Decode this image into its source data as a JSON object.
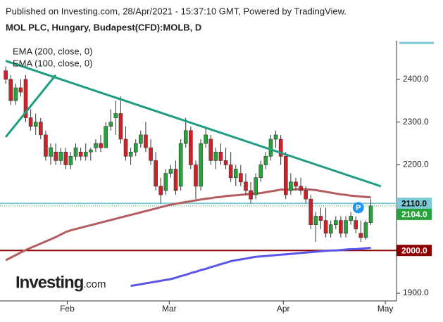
{
  "header": {
    "line1": "Published on Investing.com, 28/Apr/2021 - 15:37:10 GMT, Powered by TradingView.",
    "line2": "MOL PLC, Hungary, Budapest(CFD):MOLB, D"
  },
  "logo": {
    "brand": "Investing",
    "suffix": ".com"
  },
  "chart_data": {
    "type": "candlestick",
    "x": [
      0,
      1,
      2,
      3,
      4,
      5,
      6,
      7,
      8,
      9,
      10,
      11,
      12,
      13,
      14,
      15,
      16,
      17,
      18,
      19,
      20,
      21,
      22,
      23,
      24,
      25,
      26,
      27,
      28,
      29,
      30,
      31,
      32,
      33,
      34,
      35,
      36,
      37,
      38,
      39,
      40,
      41,
      42,
      43,
      44,
      45,
      46,
      47,
      48,
      49,
      50,
      51,
      52,
      53,
      54,
      55,
      56,
      57,
      58,
      59,
      60,
      61,
      62,
      63,
      64,
      65,
      66,
      67,
      68,
      69,
      70,
      71,
      72,
      73
    ],
    "series": [
      {
        "color_up": "#26a33a",
        "color_down": "#d32027",
        "open": [
          2420,
          2400,
          2350,
          2380,
          2400,
          2310,
          2290,
          2300,
          2270,
          2220,
          2230,
          2210,
          2230,
          2200,
          2220,
          2230,
          2220,
          2230,
          2240,
          2250,
          2240,
          2290,
          2310,
          2320,
          2260,
          2220,
          2230,
          2250,
          2270,
          2240,
          2210,
          2150,
          2140,
          2180,
          2190,
          2150,
          2250,
          2280,
          2200,
          2150,
          2250,
          2260,
          2210,
          2230,
          2210,
          2200,
          2170,
          2180,
          2160,
          2140,
          2130,
          2170,
          2200,
          2220,
          2260,
          2260,
          2220,
          2140,
          2160,
          2150,
          2140,
          2120,
          2060,
          2080,
          2070,
          2040,
          2060,
          2070,
          2040,
          2070,
          2070,
          2040,
          2030,
          2065
        ],
        "high": [
          2430,
          2410,
          2390,
          2400,
          2410,
          2330,
          2320,
          2310,
          2280,
          2250,
          2250,
          2240,
          2240,
          2230,
          2250,
          2240,
          2250,
          2240,
          2260,
          2270,
          2300,
          2330,
          2350,
          2360,
          2290,
          2240,
          2260,
          2280,
          2300,
          2260,
          2230,
          2170,
          2190,
          2200,
          2210,
          2260,
          2310,
          2290,
          2210,
          2260,
          2290,
          2270,
          2240,
          2250,
          2240,
          2230,
          2200,
          2200,
          2180,
          2160,
          2180,
          2210,
          2230,
          2270,
          2280,
          2270,
          2230,
          2180,
          2170,
          2170,
          2150,
          2130,
          2090,
          2100,
          2100,
          2070,
          2080,
          2080,
          2080,
          2090,
          2080,
          2070,
          2070,
          2120
        ],
        "low": [
          2390,
          2340,
          2340,
          2360,
          2300,
          2280,
          2270,
          2260,
          2210,
          2200,
          2200,
          2200,
          2190,
          2190,
          2210,
          2210,
          2210,
          2210,
          2230,
          2230,
          2240,
          2280,
          2270,
          2250,
          2210,
          2200,
          2220,
          2240,
          2230,
          2200,
          2140,
          2110,
          2130,
          2170,
          2130,
          2140,
          2240,
          2190,
          2120,
          2140,
          2240,
          2200,
          2190,
          2200,
          2190,
          2160,
          2150,
          2150,
          2130,
          2110,
          2120,
          2160,
          2190,
          2210,
          2240,
          2200,
          2120,
          2130,
          2140,
          2130,
          2110,
          2050,
          2020,
          2050,
          2030,
          2030,
          2050,
          2030,
          2030,
          2060,
          2040,
          2020,
          2025,
          2060
        ],
        "close": [
          2400,
          2350,
          2380,
          2370,
          2310,
          2290,
          2300,
          2270,
          2220,
          2240,
          2210,
          2230,
          2200,
          2220,
          2240,
          2220,
          2230,
          2235,
          2250,
          2240,
          2290,
          2300,
          2320,
          2260,
          2220,
          2230,
          2250,
          2270,
          2240,
          2210,
          2150,
          2130,
          2180,
          2190,
          2140,
          2250,
          2280,
          2200,
          2150,
          2250,
          2270,
          2210,
          2230,
          2210,
          2200,
          2170,
          2190,
          2160,
          2140,
          2120,
          2170,
          2200,
          2220,
          2260,
          2270,
          2220,
          2130,
          2160,
          2150,
          2140,
          2120,
          2060,
          2080,
          2070,
          2040,
          2060,
          2070,
          2040,
          2070,
          2080,
          2050,
          2030,
          2065,
          2104
        ]
      },
      {
        "name": "EMA (200, close, 0)",
        "color": "#5a55e8",
        "values": [
          null,
          null,
          null,
          null,
          null,
          null,
          null,
          null,
          null,
          null,
          null,
          null,
          null,
          null,
          null,
          null,
          null,
          null,
          null,
          null,
          null,
          null,
          null,
          null,
          null,
          1917,
          1919,
          1921,
          1923,
          1925,
          1927,
          1929,
          1931,
          1933,
          1936,
          1940,
          1943,
          1947,
          1950,
          1954,
          1957,
          1961,
          1964,
          1968,
          1971,
          1975,
          1977,
          1979,
          1981,
          1983,
          1985,
          1986,
          1987,
          1988,
          1989,
          1990,
          1991,
          1992,
          1993,
          1994,
          1995,
          1996,
          1997,
          1998,
          1999,
          2000,
          2000,
          2001,
          2002,
          2003,
          2003,
          2004,
          2005,
          2006
        ]
      },
      {
        "name": "EMA (100, close, 0)",
        "color": "#b35d5f",
        "values": [
          1977,
          1983,
          1989,
          1995,
          2001,
          2006,
          2011,
          2016,
          2021,
          2026,
          2031,
          2037,
          2043,
          2047,
          2050,
          2053,
          2056,
          2059,
          2062,
          2065,
          2068,
          2071,
          2074,
          2077,
          2080,
          2083,
          2086,
          2089,
          2092,
          2095,
          2098,
          2101,
          2104,
          2107,
          2109,
          2111,
          2113,
          2115,
          2117,
          2119,
          2121,
          2122,
          2124,
          2125,
          2127,
          2128,
          2129,
          2130,
          2131,
          2132,
          2133,
          2134,
          2136,
          2138,
          2140,
          2142,
          2142,
          2142,
          2143,
          2143,
          2143,
          2142,
          2141,
          2139,
          2137,
          2135,
          2133,
          2131,
          2130,
          2128,
          2127,
          2126,
          2125,
          2124
        ]
      }
    ],
    "trend_lines": [
      {
        "color": "#1e9c84",
        "x": [
          0,
          75
        ],
        "y": [
          2443,
          2150
        ]
      },
      {
        "color": "#1e9c84",
        "x": [
          0,
          10
        ],
        "y": [
          2265,
          2410
        ]
      }
    ],
    "levels": [
      {
        "value": 2110,
        "label": "2110.0",
        "color": "#7ccad6",
        "style": "solid"
      },
      {
        "value": 2104,
        "label": "2104.0",
        "color": "#26a33a",
        "style": "dotted"
      },
      {
        "value": 2000,
        "label": "2000.0",
        "color": "#8b0000",
        "style": "solid"
      }
    ],
    "marker": {
      "x": 70.5,
      "y": 2100,
      "label": "P",
      "color": "#2196f3"
    },
    "xlim": [
      -1,
      78
    ],
    "xticks": [
      {
        "value": 12.3,
        "label": "Feb"
      },
      {
        "value": 32.7,
        "label": "Mar"
      },
      {
        "value": 55.5,
        "label": "Apr"
      },
      {
        "value": 75.9,
        "label": "May"
      }
    ],
    "ylim": [
      1882,
      2490
    ],
    "yticks": [
      {
        "value": 1900,
        "label": "1900.0"
      },
      {
        "value": 2000,
        "label": "2000.0"
      },
      {
        "value": 2100,
        "label": "2100.0"
      },
      {
        "value": 2200,
        "label": "2200.0"
      },
      {
        "value": 2300,
        "label": "2300.0"
      },
      {
        "value": 2400,
        "label": "2400.0"
      }
    ]
  }
}
